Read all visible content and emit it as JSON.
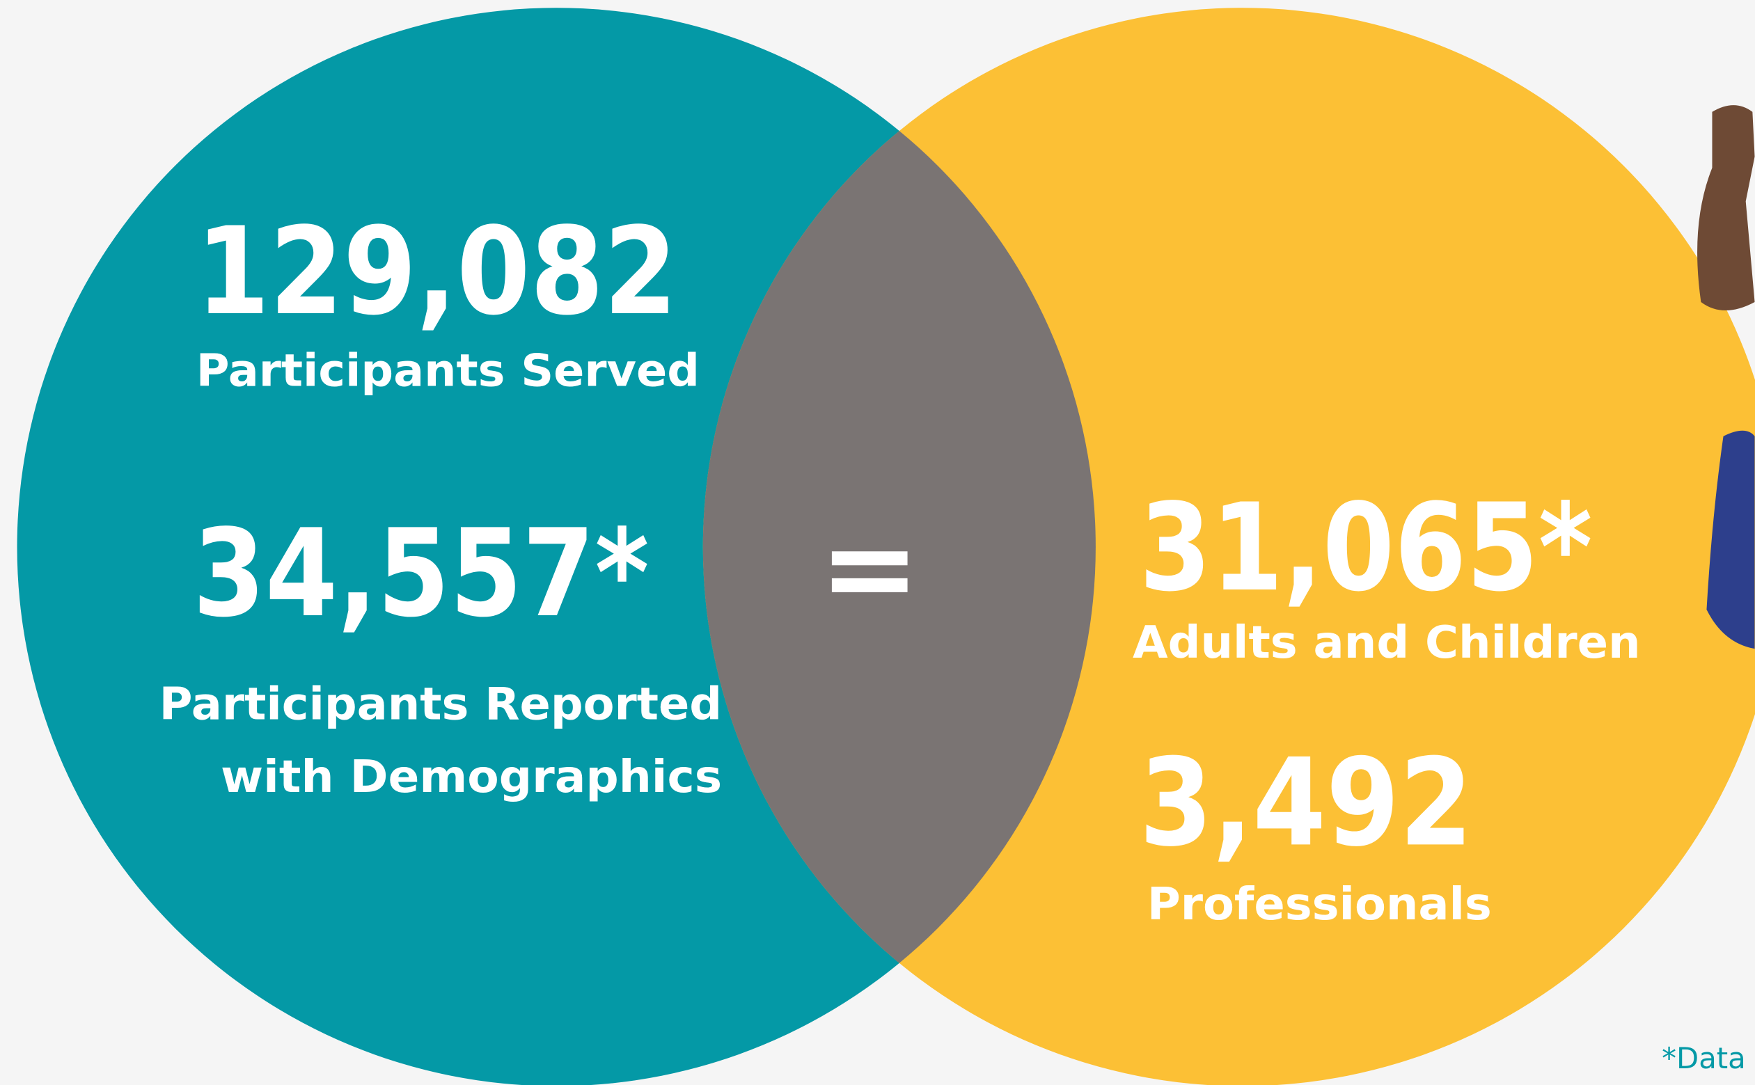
{
  "left": {
    "stats": [
      {
        "value": "129,082",
        "label": "Participants Served"
      },
      {
        "value": "34,557*",
        "label_lines": [
          "Participants Reported",
          "with Demographics"
        ]
      }
    ]
  },
  "operator": "=",
  "right": {
    "stats": [
      {
        "value": "31,065*",
        "label": "Adults and Children"
      },
      {
        "value": "3,492",
        "label": "Professionals"
      }
    ]
  },
  "footnote": "*Data"
}
